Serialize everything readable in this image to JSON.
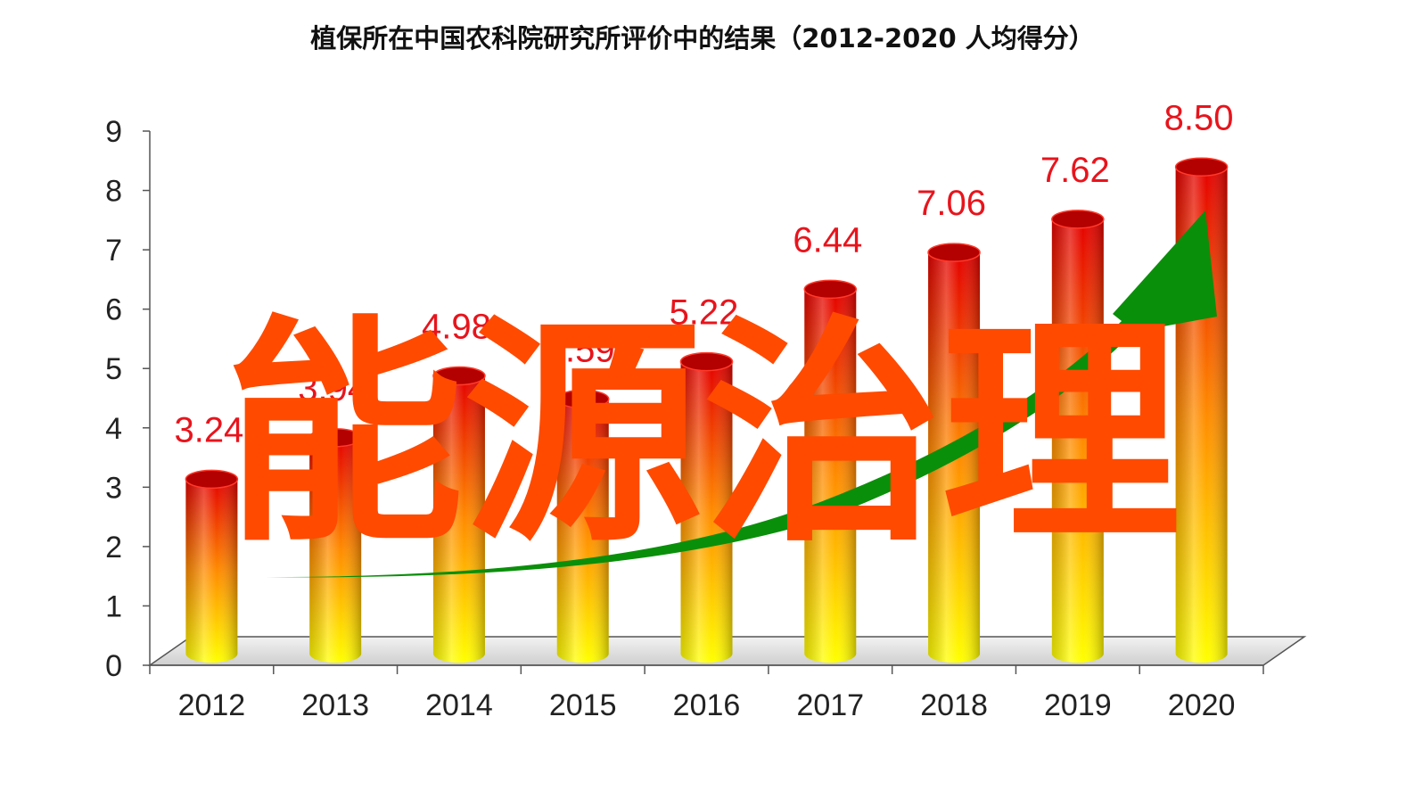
{
  "chart_data": {
    "type": "bar",
    "title": "植保所在中国农科院研究所评价中的结果（2012-2020  人均得分）",
    "categories": [
      "2012",
      "2013",
      "2014",
      "2015",
      "2016",
      "2017",
      "2018",
      "2019",
      "2020"
    ],
    "values": [
      3.24,
      3.94,
      4.98,
      4.59,
      5.22,
      6.44,
      7.06,
      7.62,
      8.5
    ],
    "data_labels": [
      "3.24",
      "3.94",
      "4.98",
      "4.59",
      "5.22",
      "6.44",
      "7.06",
      "7.62",
      "8.50"
    ],
    "ylim": [
      0,
      9
    ],
    "yticks": [
      "0",
      "1",
      "2",
      "3",
      "4",
      "5",
      "6",
      "7",
      "8",
      "9"
    ],
    "grid": false,
    "legend": "none",
    "trend_arrow": "rising"
  },
  "overlay": {
    "text": "能源治理"
  },
  "colors": {
    "bar_top": "#e40000",
    "bar_mid": "#ff8c00",
    "bar_bottom": "#ffff00",
    "label": "#e8141c",
    "arrow": "#0a8f0a",
    "overlay": "#ff4a00",
    "floor": "#dadada"
  }
}
